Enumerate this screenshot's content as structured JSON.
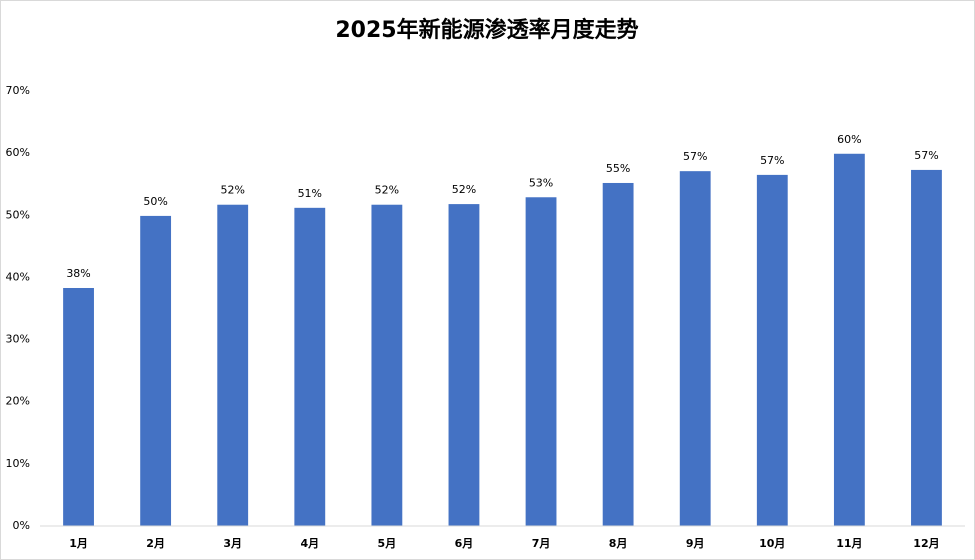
{
  "chart_data": {
    "type": "bar",
    "title": "2025年新能源渗透率月度走势",
    "categories": [
      "1月",
      "2月",
      "3月",
      "4月",
      "5月",
      "6月",
      "7月",
      "8月",
      "9月",
      "10月",
      "11月",
      "12月"
    ],
    "values": [
      38.3,
      49.9,
      51.7,
      51.2,
      51.7,
      51.8,
      52.9,
      55.2,
      57.1,
      56.5,
      59.9,
      57.3
    ],
    "value_labels": [
      "38%",
      "50%",
      "52%",
      "51%",
      "52%",
      "52%",
      "53%",
      "55%",
      "57%",
      "57%",
      "60%",
      "57%"
    ],
    "color": "#4472c4",
    "ylim": [
      0,
      70
    ],
    "yticks": [
      {
        "value": 0,
        "label": "0%"
      },
      {
        "value": 10,
        "label": "10%"
      },
      {
        "value": 20,
        "label": "20%"
      },
      {
        "value": 30,
        "label": "30%"
      },
      {
        "value": 40,
        "label": "40%"
      },
      {
        "value": 50,
        "label": "50%"
      },
      {
        "value": 60,
        "label": "60%"
      },
      {
        "value": 70,
        "label": "70%"
      }
    ],
    "grid": false
  }
}
